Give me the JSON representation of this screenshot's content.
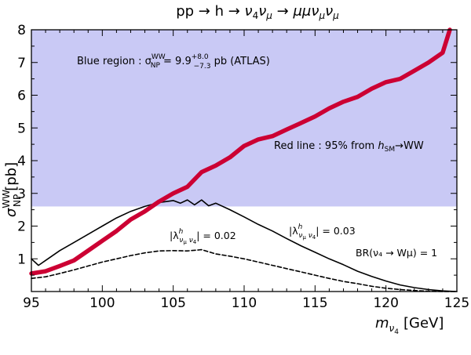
{
  "chart_data": {
    "type": "line",
    "title": "pp → h → ν₄ν_μ → μμν_μν_μ",
    "xlabel": "m_ν4 [GeV]",
    "ylabel": "σ_NP^WW [pb]",
    "xlim": [
      95,
      125
    ],
    "ylim": [
      0,
      8
    ],
    "x_ticks": [
      95,
      100,
      105,
      110,
      115,
      120,
      125
    ],
    "y_ticks": [
      1,
      2,
      3,
      4,
      5,
      6,
      7,
      8
    ],
    "shaded_region": {
      "label": "Blue region : σ_NP^WW = 9.9 (+8.0 −7.3) pb (ATLAS)",
      "from": 2.6,
      "to": 8,
      "color": "#c9c9f5"
    },
    "series": [
      {
        "name": "Red line : 95% from h_SM→WW",
        "style": "thick",
        "color": "#cc0033",
        "x": [
          95,
          96,
          97,
          98,
          99,
          100,
          101,
          102,
          103,
          104,
          105,
          106,
          107,
          108,
          109,
          110,
          111,
          112,
          113,
          114,
          115,
          116,
          117,
          118,
          119,
          120,
          121,
          122,
          123,
          124,
          124.5
        ],
        "y": [
          0.55,
          0.62,
          0.78,
          0.95,
          1.25,
          1.55,
          1.85,
          2.2,
          2.45,
          2.75,
          3.0,
          3.2,
          3.65,
          3.85,
          4.1,
          4.45,
          4.65,
          4.75,
          4.95,
          5.15,
          5.35,
          5.6,
          5.8,
          5.95,
          6.2,
          6.4,
          6.5,
          6.75,
          7.0,
          7.3,
          8.0
        ]
      },
      {
        "name": "|λ^h_νμν4| = 0.03",
        "style": "solid",
        "color": "#000000",
        "x": [
          95,
          95.5,
          96,
          97,
          98,
          99,
          100,
          101,
          102,
          103,
          104,
          105,
          105.5,
          106,
          106.5,
          107,
          107.5,
          108,
          109,
          110,
          111,
          112,
          113,
          114,
          115,
          116,
          117,
          118,
          119,
          120,
          121,
          122,
          123,
          124,
          125
        ],
        "y": [
          1.0,
          0.8,
          0.95,
          1.25,
          1.5,
          1.75,
          2.0,
          2.25,
          2.45,
          2.6,
          2.72,
          2.78,
          2.7,
          2.8,
          2.65,
          2.8,
          2.62,
          2.7,
          2.5,
          2.28,
          2.05,
          1.85,
          1.62,
          1.4,
          1.2,
          1.0,
          0.82,
          0.62,
          0.46,
          0.32,
          0.2,
          0.12,
          0.06,
          0.02,
          0.0
        ]
      },
      {
        "name": "|λ^h_νμν4| = 0.02",
        "style": "dashed",
        "color": "#000000",
        "x": [
          95,
          96,
          97,
          98,
          99,
          100,
          101,
          102,
          103,
          104,
          105,
          106,
          107,
          108,
          109,
          110,
          111,
          112,
          113,
          114,
          115,
          116,
          117,
          118,
          119,
          120,
          121,
          122,
          123,
          124,
          125
        ],
        "y": [
          0.4,
          0.45,
          0.55,
          0.66,
          0.78,
          0.9,
          1.0,
          1.1,
          1.18,
          1.24,
          1.25,
          1.24,
          1.28,
          1.15,
          1.08,
          1.0,
          0.9,
          0.8,
          0.7,
          0.6,
          0.5,
          0.4,
          0.31,
          0.24,
          0.16,
          0.1,
          0.06,
          0.03,
          0.01,
          0.0,
          0.0
        ]
      }
    ],
    "annotations": [
      "BR(ν₄ → Wμ) = 1"
    ]
  },
  "labels": {
    "title_main": "pp → h → ",
    "title_nu4": "ν",
    "title_nu4_sub": "4",
    "title_numu": "ν",
    "title_numu_sub": "μ",
    "title_arrow": " → ",
    "title_mumu": "μμν",
    "title_mumu_sub": "μ",
    "title_end": "ν",
    "title_end_sub": "μ",
    "xlabel_m": "m",
    "xlabel_sub": "ν",
    "xlabel_subsub": "4",
    "xlabel_unit": "[GeV]",
    "ylabel_sigma": "σ",
    "ylabel_sup": "WW",
    "ylabel_sub": "NP",
    "ylabel_unit": "[pb]",
    "blue_text_a": "Blue region : σ",
    "blue_sup": "WW",
    "blue_sub": "NP",
    "blue_text_b": " = 9.9",
    "blue_plus": "+8.0",
    "blue_minus": "−7.3",
    "blue_text_c": " pb (ATLAS)",
    "red_text_a": "Red line : 95% from ",
    "red_h": "h",
    "red_sm": "SM",
    "red_text_b": "→WW",
    "lam03_a": "|λ",
    "lam03_sup": "h",
    "lam03_sub": "ν",
    "lam03_subsub": "μ",
    "lam03_sub2": " ν",
    "lam03_sub2sub": "4",
    "lam03_b": "| = 0.03",
    "lam02_a": "|λ",
    "lam02_sup": "h",
    "lam02_sub": "ν",
    "lam02_subsub": "μ",
    "lam02_sub2": " ν",
    "lam02_sub2sub": "4",
    "lam02_b": "| = 0.02",
    "br_text": "BR(ν₄ → Wμ) = 1"
  }
}
